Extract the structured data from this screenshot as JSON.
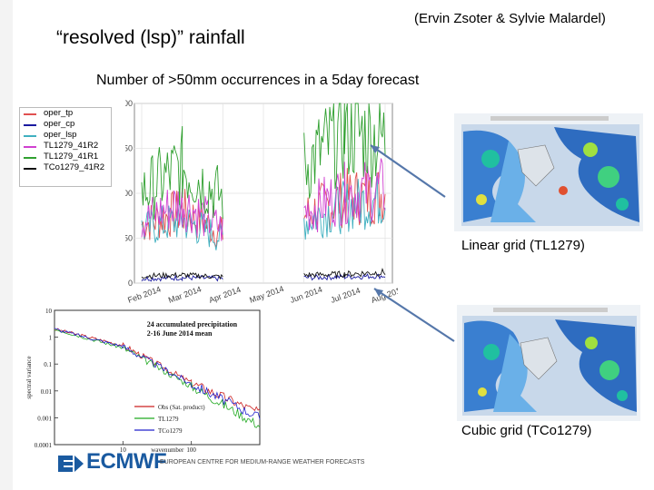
{
  "header": {
    "title": "“resolved (lsp)” rainfall",
    "credit": "(Ervin Zsoter & Sylvie Malardel)",
    "subtitle": "Number of >50mm occurrences in a 5day forecast"
  },
  "captions": {
    "linear": "Linear grid (TL1279)",
    "cubic": "Cubic grid (TCo1279)"
  },
  "footer": {
    "logo": "ECMWF",
    "org": "EUROPEAN CENTRE FOR MEDIUM-RANGE WEATHER FORECASTS"
  },
  "chart_data": [
    {
      "type": "line",
      "title": "",
      "xlabel": "",
      "ylabel": "",
      "ylim": [
        0,
        200
      ],
      "y_ticks": [
        0,
        50,
        100,
        150,
        200
      ],
      "x_ticks": [
        "Feb 2014",
        "Mar 2014",
        "Apr 2014",
        "May 2014",
        "Jun 2014",
        "Jul 2014",
        "Aug 2014"
      ],
      "legend": "top-left",
      "gaps": [
        [
          "Apr 2014",
          "Jun 2014"
        ]
      ],
      "series": [
        {
          "name": "oper_tp",
          "color": "#e05050",
          "segments": [
            {
              "x": [
                "Feb 2014",
                "Mar 2014",
                "Apr 2014"
              ],
              "y": [
                65,
                80,
                55
              ]
            },
            {
              "x": [
                "Jun 2014",
                "Jul 2014",
                "Aug 2014"
              ],
              "y": [
                75,
                95,
                100
              ]
            }
          ]
        },
        {
          "name": "oper_cp",
          "color": "#1a1aa0",
          "segments": [
            {
              "x": [
                "Feb 2014",
                "Mar 2014",
                "Apr 2014"
              ],
              "y": [
                5,
                6,
                5
              ]
            },
            {
              "x": [
                "Jun 2014",
                "Jul 2014",
                "Aug 2014"
              ],
              "y": [
                6,
                7,
                8
              ]
            }
          ]
        },
        {
          "name": "oper_lsp",
          "color": "#40b0c0",
          "segments": [
            {
              "x": [
                "Feb 2014",
                "Mar 2014",
                "Apr 2014"
              ],
              "y": [
                60,
                70,
                50
              ]
            },
            {
              "x": [
                "Jun 2014",
                "Jul 2014",
                "Aug 2014"
              ],
              "y": [
                70,
                85,
                95
              ]
            }
          ]
        },
        {
          "name": "TL1279_41R2",
          "color": "#d040d0",
          "segments": [
            {
              "x": [
                "Feb 2014",
                "Mar 2014",
                "Apr 2014"
              ],
              "y": [
                70,
                90,
                60
              ]
            },
            {
              "x": [
                "Jun 2014",
                "Jul 2014",
                "Aug 2014"
              ],
              "y": [
                80,
                100,
                105
              ]
            }
          ]
        },
        {
          "name": "TL1279_41R1",
          "color": "#30a030",
          "segments": [
            {
              "x": [
                "Feb 2014",
                "Mar 2014",
                "Apr 2014"
              ],
              "y": [
                100,
                130,
                95
              ]
            },
            {
              "x": [
                "Jun 2014",
                "Jul 2014",
                "Aug 2014"
              ],
              "y": [
                130,
                170,
                160
              ]
            }
          ]
        },
        {
          "name": "TCo1279_41R2",
          "color": "#111111",
          "segments": [
            {
              "x": [
                "Feb 2014",
                "Mar 2014",
                "Apr 2014"
              ],
              "y": [
                8,
                9,
                7
              ]
            },
            {
              "x": [
                "Jun 2014",
                "Jul 2014",
                "Aug 2014"
              ],
              "y": [
                9,
                10,
                12
              ]
            }
          ]
        }
      ]
    },
    {
      "type": "line",
      "title": "24 accumulated precipitation",
      "subtitle": "2-16 June 2014 mean",
      "xlabel": "wavenumber",
      "ylabel": "spectral variance",
      "y_scale": "log",
      "x_scale": "log",
      "ylim": [
        0.0001,
        10
      ],
      "y_ticks": [
        "10",
        "1",
        "0.1",
        "0.01",
        "0.001",
        "0.0001"
      ],
      "x_ticks": [
        "10",
        "100"
      ],
      "legend": "bottom-center",
      "series": [
        {
          "name": "Obs (Sat. product)",
          "color": "#cc2222",
          "x": [
            1,
            10,
            100,
            1000
          ],
          "y": [
            2,
            0.5,
            0.02,
            0.0015
          ]
        },
        {
          "name": "TL1279",
          "color": "#22aa22",
          "x": [
            1,
            10,
            100,
            1000
          ],
          "y": [
            2,
            0.4,
            0.015,
            0.0005
          ]
        },
        {
          "name": "TCo1279",
          "color": "#2222cc",
          "x": [
            1,
            10,
            100,
            1000
          ],
          "y": [
            2,
            0.45,
            0.018,
            0.001
          ]
        }
      ]
    }
  ]
}
